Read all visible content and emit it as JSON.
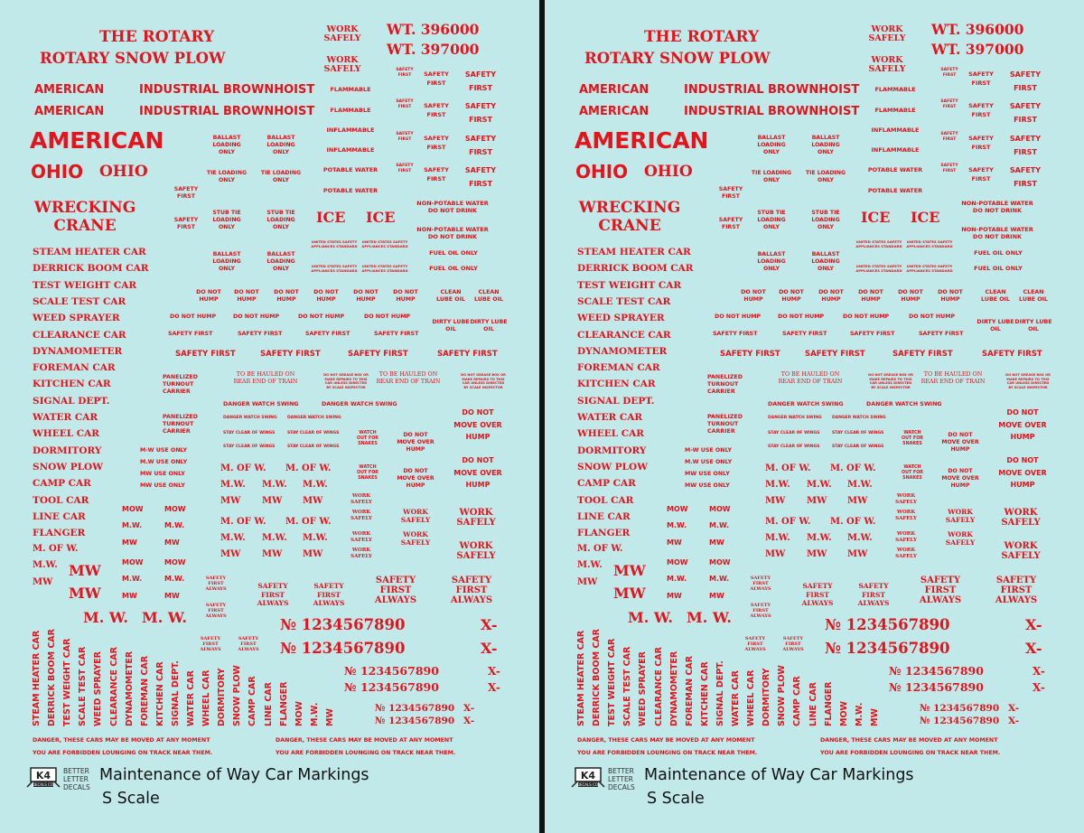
{
  "sheet": {
    "background_color": "#c1e9ea",
    "marking_color": "#e3141b",
    "title": "Maintenance of Way Car Markings",
    "scale": "S Scale",
    "logo": {
      "mark": "K4",
      "sub": "DECALS CO.",
      "text": [
        "BETTER",
        "LETTER",
        "DECALS"
      ]
    },
    "weights": [
      "WT. 396000",
      "WT. 397000"
    ],
    "work_safely": "WORK SAFELY",
    "rotary": [
      "THE ROTARY",
      "ROTARY SNOW PLOW"
    ],
    "american": "AMERICAN",
    "industrial_brownhoist": "INDUSTRIAL BROWNHOIST",
    "ohio": "OHIO",
    "wrecking_crane": [
      "WRECKING",
      "CRANE"
    ],
    "car_names": [
      "STEAM HEATER CAR",
      "DERRICK BOOM CAR",
      "TEST WEIGHT CAR",
      "SCALE TEST CAR",
      "WEED SPRAYER",
      "CLEARANCE CAR",
      "DYNAMOMETER",
      "FOREMAN CAR",
      "KITCHEN CAR",
      "SIGNAL DEPT.",
      "WATER CAR",
      "WHEEL CAR",
      "DORMITORY",
      "SNOW PLOW",
      "CAMP CAR",
      "TOOL CAR",
      "LINE CAR",
      "FLANGER"
    ],
    "vertical_names": [
      "STEAM HEATER CAR",
      "DERRICK BOOM CAR",
      "TEST WEIGHT CAR",
      "SCALE TEST CAR",
      "WEED SPRAYER",
      "CLEARANCE CAR",
      "DYNAMOMETER",
      "FOREMAN CAR",
      "KITCHEN CAR",
      "SIGNAL DEPT.",
      "WATER CAR",
      "WHEEL CAR",
      "DORMITORY",
      "SNOW PLOW",
      "CAMP CAR",
      "LINE CAR",
      "FLANGER",
      "MOW",
      "M.W.",
      "MW"
    ],
    "safety_first": "SAFETY FIRST",
    "safety_first_always": "SAFETY FIRST ALWAYS",
    "flammable": "FLAMMABLE",
    "inflammable": "INFLAMMABLE",
    "potable_water": "POTABLE WATER",
    "non_potable": "NON-POTABLE WATER DO NOT DRINK",
    "fuel_oil_only": "FUEL OIL ONLY",
    "ballast_loading_only": "BALLAST LOADING ONLY",
    "tie_loading_only": "TIE LOADING ONLY",
    "stub_tie_loading_only": "STUB TIE LOADING ONLY",
    "ice": "ICE",
    "usa_standard": "UNITED STATES SAFETY APPLIANCES STANDARD",
    "do_not_hump": "DO NOT HUMP",
    "do_not_move_over_hump": "DO NOT MOVE OVER HUMP",
    "clean_lube_oil": "CLEAN LUBE OIL",
    "dirty_lube_oil": "DIRTY LUBE OIL",
    "panelized": "PANELIZED TURNOUT CARRIER",
    "hauled": "TO BE HAULED ON REAR END OF TRAIN",
    "grease": "DO NOT GREASE BOX OR MAKE REPAIRS TO THIS CAR UNLESS DIRECTED BY SCALE INSPECTOR",
    "danger_watch_swing": "DANGER WATCH SWING",
    "stay_clear_of_wings": "STAY CLEAR OF WINGS",
    "watch_out": "WATCH OUT FOR SNAKES",
    "mw_use_only": [
      "M-W USE ONLY",
      "M.W USE ONLY",
      "MW USE ONLY",
      "MW USE ONLY"
    ],
    "m_of_w": "M. OF W.",
    "mw_dot": "M.W.",
    "mw": "MW",
    "mow": "MOW",
    "mw_big": "M. W.",
    "number_big": "№ 1234567890",
    "x_dash": "X-",
    "danger": "DANGER, THESE CARS MAY BE MOVED AT ANY MOMENT",
    "forbidden": "YOU ARE FORBIDDEN LOUNGING ON TRACK NEAR THEM."
  }
}
